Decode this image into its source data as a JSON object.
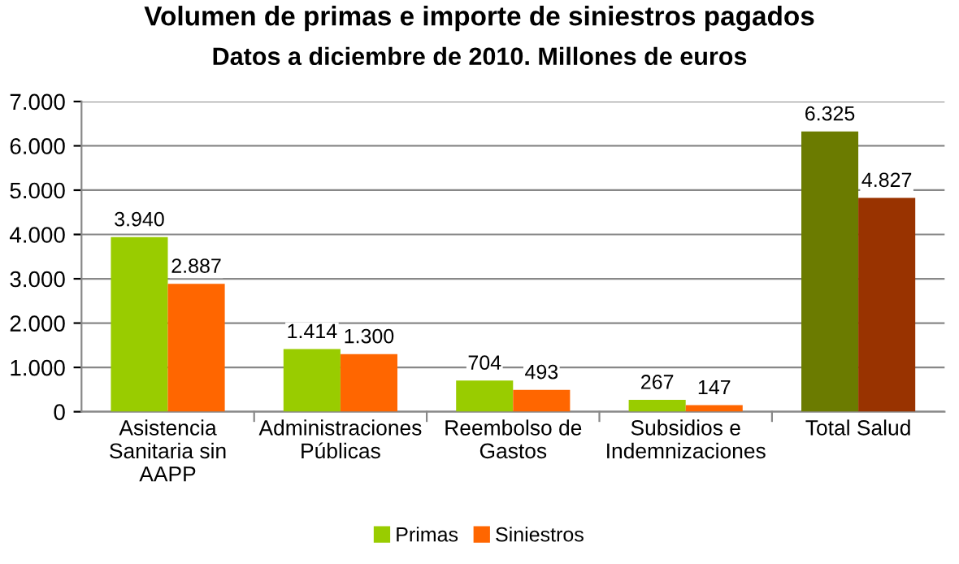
{
  "chart_data": {
    "type": "bar",
    "title": "Volumen de primas e importe de siniestros pagados",
    "subtitle": "Datos a diciembre de 2010. Millones de euros",
    "categories": [
      "Asistencia\nSanitaria sin\nAAPP",
      "Administraciones\nPúblicas",
      "Reembolso de\nGastos",
      "Subsidios e\nIndemnizaciones",
      "Total Salud"
    ],
    "series": [
      {
        "name": "Primas",
        "color": "#99cc00",
        "colors": [
          "#99cc00",
          "#99cc00",
          "#99cc00",
          "#99cc00",
          "#6b7b00"
        ],
        "values": [
          3940,
          1414,
          704,
          267,
          6325
        ],
        "value_labels": [
          "3.940",
          "1.414",
          "704",
          "267",
          "6.325"
        ]
      },
      {
        "name": "Siniestros",
        "color": "#ff6600",
        "colors": [
          "#ff6600",
          "#ff6600",
          "#ff6600",
          "#ff6600",
          "#993300"
        ],
        "values": [
          2887,
          1300,
          493,
          147,
          4827
        ],
        "value_labels": [
          "2.887",
          "1.300",
          "493",
          "147",
          "4.827"
        ]
      }
    ],
    "ylim": [
      0,
      7000
    ],
    "yticks": [
      {
        "value": 0,
        "label": "0"
      },
      {
        "value": 1000,
        "label": "1.000"
      },
      {
        "value": 2000,
        "label": "2.000"
      },
      {
        "value": 3000,
        "label": "3.000"
      },
      {
        "value": 4000,
        "label": "4.000"
      },
      {
        "value": 5000,
        "label": "5.000"
      },
      {
        "value": 6000,
        "label": "6.000"
      },
      {
        "value": 7000,
        "label": "7.000"
      }
    ],
    "grid": "y",
    "legend": "bottom"
  }
}
